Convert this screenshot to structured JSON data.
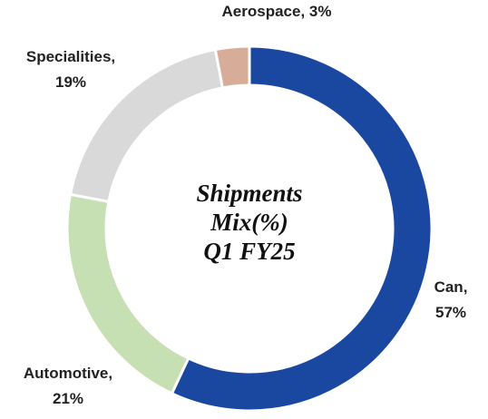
{
  "chart_data": {
    "type": "donut",
    "title": [
      "Shipments",
      "Mix(%)",
      "Q1 FY25"
    ],
    "values": [
      57,
      21,
      19,
      3
    ],
    "value_labels": [
      "Can, 57%",
      "Automotive, 21%",
      "Specialities, 19%",
      "Aerospace, 3%"
    ],
    "colors": [
      "#1a47a0",
      "#c6e0b4",
      "#d9d9d9",
      "#d7ad9a"
    ]
  }
}
